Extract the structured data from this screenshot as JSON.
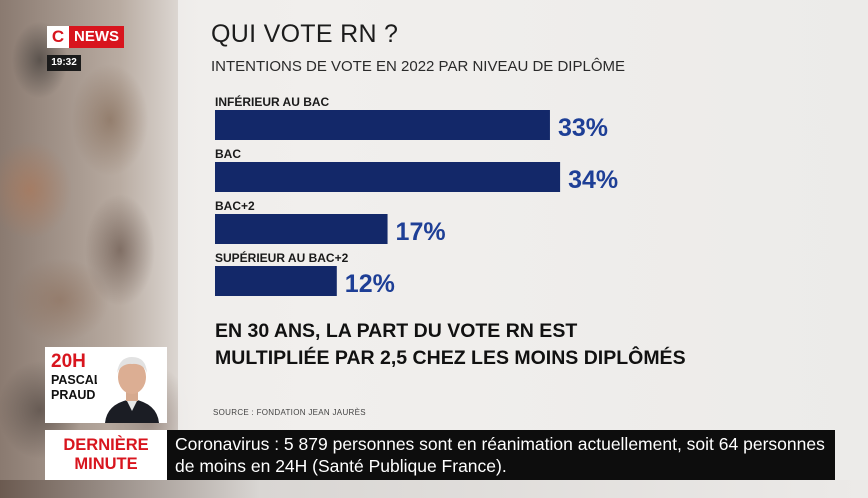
{
  "channel": {
    "logo_c": "C",
    "logo_news": "NEWS",
    "clock": "19:32"
  },
  "title": "QUI VOTE RN ?",
  "subtitle": "INTENTIONS DE VOTE EN 2022 PAR NIVEAU DE DIPLÔME",
  "chart_data": {
    "type": "bar",
    "orientation": "horizontal",
    "categories": [
      "INFÉRIEUR AU BAC",
      "BAC",
      "BAC+2",
      "SUPÉRIEUR AU BAC+2"
    ],
    "values": [
      33,
      34,
      17,
      12
    ],
    "value_labels": [
      "33%",
      "34%",
      "17%",
      "12%"
    ],
    "title": "QUI VOTE RN ?",
    "subtitle": "INTENTIONS DE VOTE EN 2022 PAR NIVEAU DE DIPLÔME",
    "bar_color": "#132869",
    "label_color": "#1e3f96",
    "grid": false,
    "legend": "none"
  },
  "conclusion": {
    "line1": "EN 30 ANS, LA PART DU VOTE RN EST",
    "line2": "MULTIPLIÉE PAR 2,5 CHEZ LES MOINS DIPLÔMÉS"
  },
  "source": "SOURCE : FONDATION JEAN JAURÈS",
  "presenter": {
    "time": "20H",
    "first_name": "PASCAL",
    "last_name": "PRAUD"
  },
  "ticker": {
    "label_line1": "DERNIÈRE",
    "label_line2": "MINUTE",
    "text": "Coronavirus : 5 879 personnes sont en réanimation actuellement, soit 64 personnes de moins en 24H (Santé Publique France)."
  },
  "colors": {
    "brand_red": "#d8151e",
    "ticker_bg": "#0d0d0d"
  }
}
